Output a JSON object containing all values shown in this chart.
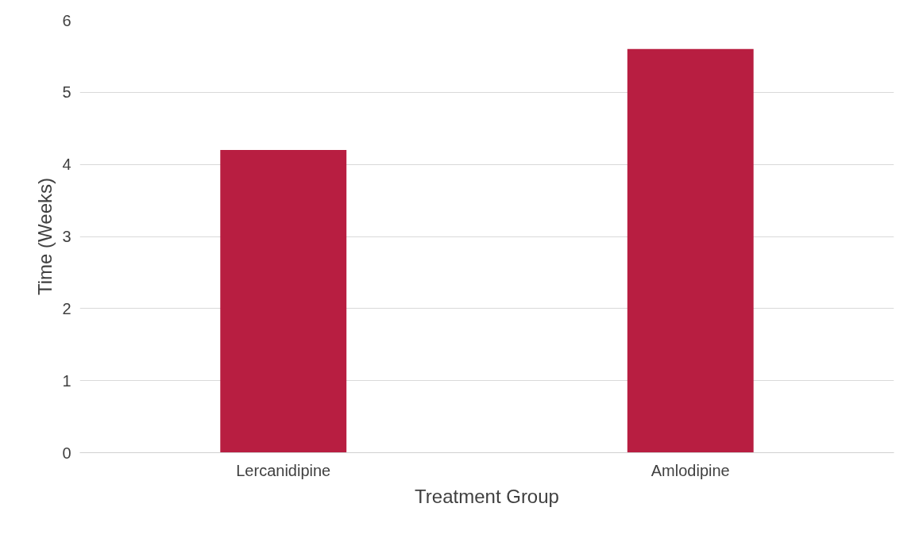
{
  "chart_data": {
    "type": "bar",
    "xlabel": "Treatment Group",
    "ylabel": "Time (Weeks)",
    "categories": [
      "Lercanidipine",
      "Amlodipine"
    ],
    "values": [
      4.2,
      5.6
    ],
    "color": "#b81e41",
    "ylim": [
      0,
      6
    ],
    "yticks": [
      0,
      1,
      2,
      3,
      4,
      5,
      6
    ],
    "grid": "y"
  }
}
